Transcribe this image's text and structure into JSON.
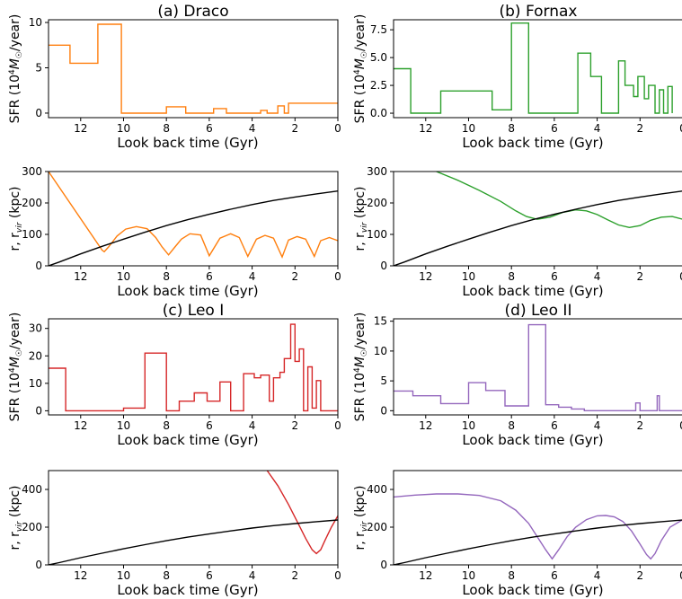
{
  "figure": {
    "chart_data": [
      {
        "id": "draco-sfr",
        "type": "line",
        "step": true,
        "title": "(a) Draco",
        "xlabel": "Look back time (Gyr)",
        "ylabel_parts": [
          "SFR (10",
          "4",
          "M",
          "☉",
          "/year)"
        ],
        "xlim": [
          13.5,
          0
        ],
        "ylim": [
          -0.5,
          10.3
        ],
        "xticks": [
          12,
          10,
          8,
          6,
          4,
          2,
          0
        ],
        "yticks": [
          0,
          5,
          10
        ],
        "series": [
          {
            "color": "#ff7f0e",
            "x": [
              13.5,
              12.5,
              12.5,
              11.2,
              11.2,
              10.1,
              10.1,
              8.0,
              8.0,
              7.1,
              7.1,
              5.8,
              5.8,
              5.2,
              5.2,
              3.6,
              3.6,
              3.3,
              3.3,
              2.8,
              2.8,
              2.5,
              2.5,
              2.3,
              2.3,
              0
            ],
            "y": [
              7.5,
              7.5,
              5.5,
              5.5,
              9.8,
              9.8,
              0,
              0,
              0.7,
              0.7,
              0,
              0,
              0.5,
              0.5,
              0,
              0,
              0.3,
              0.3,
              0,
              0,
              0.8,
              0.8,
              0,
              0,
              1.1,
              1.1
            ]
          }
        ]
      },
      {
        "id": "fornax-sfr",
        "type": "line",
        "step": true,
        "title": "(b) Fornax",
        "xlabel": "Look back time (Gyr)",
        "ylabel_parts": [
          "SFR (10",
          "4",
          "M",
          "☉",
          "/year)"
        ],
        "xlim": [
          13.5,
          0
        ],
        "ylim": [
          -0.4,
          8.4
        ],
        "xticks": [
          12,
          10,
          8,
          6,
          4,
          2,
          0
        ],
        "yticks": [
          0.0,
          2.5,
          5.0,
          7.5
        ],
        "ytick_labels": [
          "0.0",
          "2.5",
          "5.0",
          "7.5"
        ],
        "series": [
          {
            "color": "#2ca02c",
            "x": [
              13.5,
              12.7,
              12.7,
              11.3,
              11.3,
              8.9,
              8.9,
              8.0,
              8.0,
              7.2,
              7.2,
              4.9,
              4.9,
              4.3,
              4.3,
              3.8,
              3.8,
              3.0,
              3.0,
              2.7,
              2.7,
              2.3,
              2.3,
              2.1,
              2.1,
              1.8,
              1.8,
              1.6,
              1.6,
              1.3,
              1.3,
              1.1,
              1.1,
              0.9,
              0.9,
              0.7,
              0.7,
              0.5,
              0.5
            ],
            "y": [
              4.0,
              4.0,
              0,
              0,
              2.0,
              2.0,
              0.3,
              0.3,
              8.1,
              8.1,
              0,
              0,
              5.4,
              5.4,
              3.3,
              3.3,
              0,
              0,
              4.7,
              4.7,
              2.5,
              2.5,
              1.5,
              1.5,
              3.3,
              3.3,
              1.3,
              1.3,
              2.5,
              2.5,
              0,
              0,
              2.1,
              2.1,
              0,
              0,
              2.4,
              2.4,
              0
            ]
          }
        ]
      },
      {
        "id": "draco-orbit",
        "type": "line",
        "xlabel": "Look back time (Gyr)",
        "ylabel_parts": [
          "r, r",
          "vir",
          " (kpc)"
        ],
        "xlim": [
          13.5,
          0
        ],
        "ylim": [
          0,
          300
        ],
        "xticks": [
          12,
          10,
          8,
          6,
          4,
          2,
          0
        ],
        "yticks": [
          0,
          100,
          200,
          300
        ],
        "series": [
          {
            "color": "#ff7f0e",
            "x": [
              13.5,
              11.0,
              10.9,
              10.7,
              10.3,
              9.9,
              9.4,
              8.9,
              8.5,
              8.2,
              7.9,
              7.6,
              7.3,
              6.9,
              6.4,
              6.0,
              5.5,
              5.0,
              4.6,
              4.2,
              3.8,
              3.4,
              3.0,
              2.6,
              2.3,
              1.9,
              1.5,
              1.1,
              0.8,
              0.4,
              0
            ],
            "y": [
              300,
              50,
              45,
              60,
              95,
              117,
              125,
              118,
              90,
              60,
              35,
              60,
              85,
              102,
              98,
              32,
              88,
              102,
              90,
              30,
              85,
              97,
              88,
              28,
              82,
              93,
              85,
              30,
              80,
              90,
              80
            ]
          },
          {
            "color": "#000000",
            "x": [
              13.5,
              13.0,
              12.0,
              11.0,
              10.0,
              9.0,
              8.0,
              7.0,
              6.0,
              5.0,
              4.0,
              3.0,
              2.0,
              1.0,
              0
            ],
            "y": [
              0,
              12,
              38,
              62,
              85,
              107,
              128,
              147,
              164,
              180,
              195,
              208,
              219,
              229,
              238
            ]
          }
        ]
      },
      {
        "id": "fornax-orbit",
        "type": "line",
        "xlabel": "Look back time (Gyr)",
        "ylabel_parts": [
          "r, r",
          "vir",
          " (kpc)"
        ],
        "xlim": [
          13.5,
          0
        ],
        "ylim": [
          0,
          300
        ],
        "xticks": [
          12,
          10,
          8,
          6,
          4,
          2,
          0
        ],
        "yticks": [
          0,
          100,
          200,
          300
        ],
        "series": [
          {
            "color": "#2ca02c",
            "x": [
              11.5,
              10.5,
              9.5,
              8.5,
              7.8,
              7.3,
              6.8,
              6.2,
              5.6,
              5.0,
              4.5,
              4.0,
              3.5,
              3.0,
              2.5,
              2.0,
              1.5,
              1.0,
              0.5,
              0
            ],
            "y": [
              300,
              272,
              240,
              205,
              175,
              157,
              148,
              155,
              170,
              178,
              175,
              163,
              146,
              130,
              122,
              128,
              145,
              155,
              157,
              148
            ]
          },
          {
            "color": "#000000",
            "x": [
              13.5,
              13.0,
              12.0,
              11.0,
              10.0,
              9.0,
              8.0,
              7.0,
              6.0,
              5.0,
              4.0,
              3.0,
              2.0,
              1.0,
              0
            ],
            "y": [
              0,
              12,
              38,
              62,
              85,
              107,
              128,
              147,
              164,
              180,
              195,
              208,
              219,
              229,
              238
            ]
          }
        ]
      },
      {
        "id": "leoi-sfr",
        "type": "line",
        "step": true,
        "title": "(c) Leo I",
        "xlabel": "Look back time (Gyr)",
        "ylabel_parts": [
          "SFR (10",
          "4",
          "M",
          "☉",
          "/year)"
        ],
        "xlim": [
          13.5,
          0
        ],
        "ylim": [
          -1.5,
          33.5
        ],
        "xticks": [
          12,
          10,
          8,
          6,
          4,
          2,
          0
        ],
        "yticks": [
          0,
          10,
          20,
          30
        ],
        "series": [
          {
            "color": "#d62728",
            "x": [
              13.5,
              12.7,
              12.7,
              10.0,
              10.0,
              9.0,
              9.0,
              8.0,
              8.0,
              7.4,
              7.4,
              6.7,
              6.7,
              6.1,
              6.1,
              5.5,
              5.5,
              5.0,
              5.0,
              4.4,
              4.4,
              3.9,
              3.9,
              3.6,
              3.6,
              3.2,
              3.2,
              3.0,
              3.0,
              2.7,
              2.7,
              2.5,
              2.5,
              2.2,
              2.2,
              2.0,
              2.0,
              1.8,
              1.8,
              1.6,
              1.6,
              1.4,
              1.4,
              1.2,
              1.2,
              1.0,
              1.0,
              0.8,
              0.8,
              0.6,
              0.6,
              0
            ],
            "y": [
              15.5,
              15.5,
              0,
              0,
              1,
              1,
              21,
              21,
              0,
              0,
              3.5,
              3.5,
              6.5,
              6.5,
              3.5,
              3.5,
              10.5,
              10.5,
              0,
              0,
              13.5,
              13.5,
              12,
              12,
              13,
              13,
              3.5,
              3.5,
              12,
              12,
              14,
              14,
              19,
              19,
              31.5,
              31.5,
              18,
              18,
              22.5,
              22.5,
              0,
              0,
              16,
              16,
              1,
              1,
              11,
              11,
              0,
              0,
              0,
              0
            ]
          }
        ]
      },
      {
        "id": "leoii-sfr",
        "type": "line",
        "step": true,
        "title": "(d) Leo II",
        "xlabel": "Look back time (Gyr)",
        "ylabel_parts": [
          "SFR (10",
          "4",
          "M",
          "☉",
          "/year)"
        ],
        "xlim": [
          13.5,
          0
        ],
        "ylim": [
          -0.7,
          15.4
        ],
        "xticks": [
          12,
          10,
          8,
          6,
          4,
          2,
          0
        ],
        "yticks": [
          0,
          5,
          10,
          15
        ],
        "series": [
          {
            "color": "#9467bd",
            "x": [
              13.5,
              12.6,
              12.6,
              11.3,
              11.3,
              10.0,
              10.0,
              9.2,
              9.2,
              8.3,
              8.3,
              7.2,
              7.2,
              6.4,
              6.4,
              5.8,
              5.8,
              5.2,
              5.2,
              4.6,
              4.6,
              2.2,
              2.2,
              2.0,
              2.0,
              1.2,
              1.2,
              1.1,
              1.1,
              0
            ],
            "y": [
              3.3,
              3.3,
              2.5,
              2.5,
              1.2,
              1.2,
              4.7,
              4.7,
              3.4,
              3.4,
              0.8,
              0.8,
              14.4,
              14.4,
              1,
              1,
              0.6,
              0.6,
              0.3,
              0.3,
              0,
              0,
              1.3,
              1.3,
              0,
              0,
              2.5,
              2.5,
              0,
              0
            ]
          }
        ]
      },
      {
        "id": "leoi-orbit",
        "type": "line",
        "xlabel": "Look back time (Gyr)",
        "ylabel_parts": [
          "r, r",
          "vir",
          " (kpc)"
        ],
        "xlim": [
          13.5,
          0
        ],
        "ylim": [
          0,
          500
        ],
        "xticks": [
          12,
          10,
          8,
          6,
          4,
          2,
          0
        ],
        "yticks": [
          0,
          200,
          400
        ],
        "series": [
          {
            "color": "#d62728",
            "x": [
              3.3,
              2.8,
              2.3,
              1.9,
              1.5,
              1.2,
              1.0,
              0.8,
              0.6,
              0.3,
              0
            ],
            "y": [
              500,
              420,
              320,
              230,
              140,
              80,
              60,
              80,
              130,
              200,
              260
            ]
          },
          {
            "color": "#000000",
            "x": [
              13.5,
              13.0,
              12.0,
              11.0,
              10.0,
              9.0,
              8.0,
              7.0,
              6.0,
              5.0,
              4.0,
              3.0,
              2.0,
              1.0,
              0
            ],
            "y": [
              0,
              12,
              38,
              62,
              85,
              107,
              128,
              147,
              164,
              180,
              195,
              208,
              219,
              229,
              238
            ]
          }
        ]
      },
      {
        "id": "leoii-orbit",
        "type": "line",
        "xlabel": "Look back time (Gyr)",
        "ylabel_parts": [
          "r, r",
          "vir",
          " (kpc)"
        ],
        "xlim": [
          13.5,
          0
        ],
        "ylim": [
          0,
          500
        ],
        "xticks": [
          12,
          10,
          8,
          6,
          4,
          2,
          0
        ],
        "yticks": [
          0,
          200,
          400
        ],
        "series": [
          {
            "color": "#9467bd",
            "x": [
              13.5,
              12.5,
              11.5,
              10.5,
              9.5,
              8.5,
              7.8,
              7.2,
              6.8,
              6.4,
              6.1,
              5.8,
              5.4,
              5.0,
              4.5,
              4.0,
              3.6,
              3.2,
              2.8,
              2.4,
              2.0,
              1.7,
              1.5,
              1.3,
              1.0,
              0.6,
              0
            ],
            "y": [
              360,
              370,
              376,
              376,
              368,
              340,
              290,
              220,
              150,
              80,
              32,
              80,
              150,
              200,
              240,
              260,
              262,
              255,
              230,
              180,
              110,
              55,
              32,
              60,
              130,
              200,
              240
            ]
          },
          {
            "color": "#000000",
            "x": [
              13.5,
              13.0,
              12.0,
              11.0,
              10.0,
              9.0,
              8.0,
              7.0,
              6.0,
              5.0,
              4.0,
              3.0,
              2.0,
              1.0,
              0
            ],
            "y": [
              0,
              12,
              38,
              62,
              85,
              107,
              128,
              147,
              164,
              180,
              195,
              208,
              219,
              229,
              238
            ]
          }
        ]
      }
    ]
  }
}
